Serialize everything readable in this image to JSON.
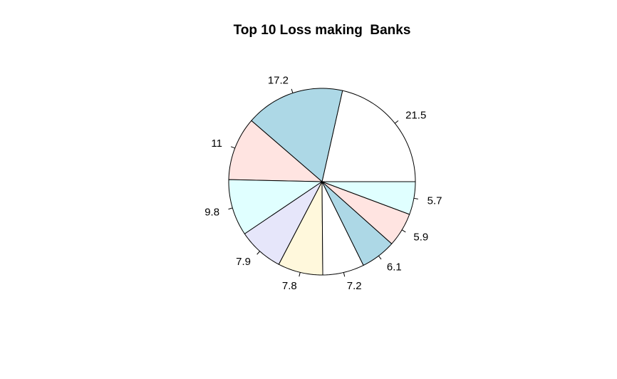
{
  "chart_data": {
    "type": "pie",
    "title": "Top 10 Loss making  Banks",
    "values": [
      21.5,
      17.2,
      11,
      9.8,
      7.9,
      7.8,
      7.2,
      6.1,
      5.9,
      5.7
    ],
    "labels": [
      "21.5",
      "17.2",
      "11",
      "9.8",
      "7.9",
      "7.8",
      "7.2",
      "6.1",
      "5.9",
      "5.7"
    ],
    "colors": [
      "#ffffff",
      "#add8e6",
      "#ffe4e1",
      "#e0ffff",
      "#e6e6fa",
      "#fff8dc",
      "#ffffff",
      "#add8e6",
      "#ffe4e1",
      "#e0ffff"
    ],
    "start_angle_deg": 0,
    "direction": "counterclockwise"
  }
}
